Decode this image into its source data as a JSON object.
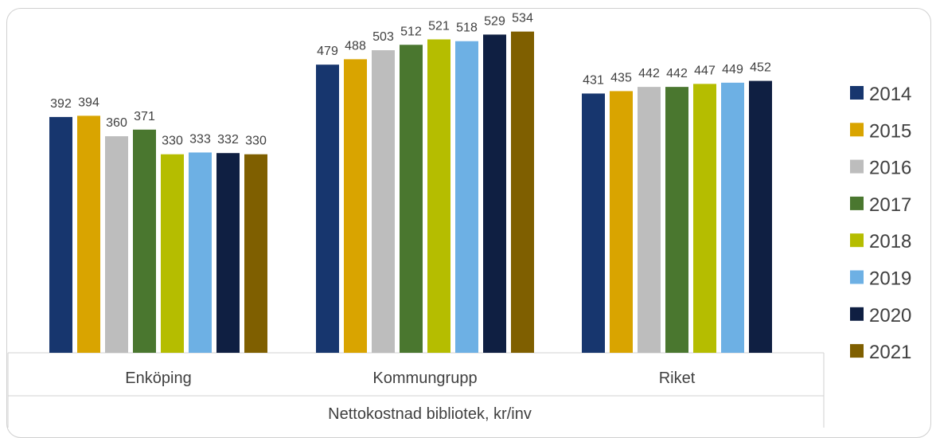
{
  "chart_data": {
    "type": "bar",
    "categories": [
      "Enköping",
      "Kommungrupp",
      "Riket"
    ],
    "xlabel": "Nettokostnad bibliotek, kr/inv",
    "ylabel": "",
    "ylim": [
      0,
      560
    ],
    "grid": false,
    "legend_position": "right",
    "series": [
      {
        "name": "2014",
        "color": "#17366e",
        "values": [
          392,
          479,
          431
        ]
      },
      {
        "name": "2015",
        "color": "#d9a400",
        "values": [
          394,
          488,
          435
        ]
      },
      {
        "name": "2016",
        "color": "#bdbdbd",
        "values": [
          360,
          503,
          442
        ]
      },
      {
        "name": "2017",
        "color": "#4a772f",
        "values": [
          371,
          512,
          442
        ]
      },
      {
        "name": "2018",
        "color": "#b5bd00",
        "values": [
          330,
          521,
          447
        ]
      },
      {
        "name": "2019",
        "color": "#6db0e4",
        "values": [
          333,
          518,
          449
        ]
      },
      {
        "name": "2020",
        "color": "#0f1f42",
        "values": [
          332,
          529,
          452
        ]
      },
      {
        "name": "2021",
        "color": "#7f5f00",
        "values": [
          330,
          534,
          null
        ]
      }
    ]
  }
}
